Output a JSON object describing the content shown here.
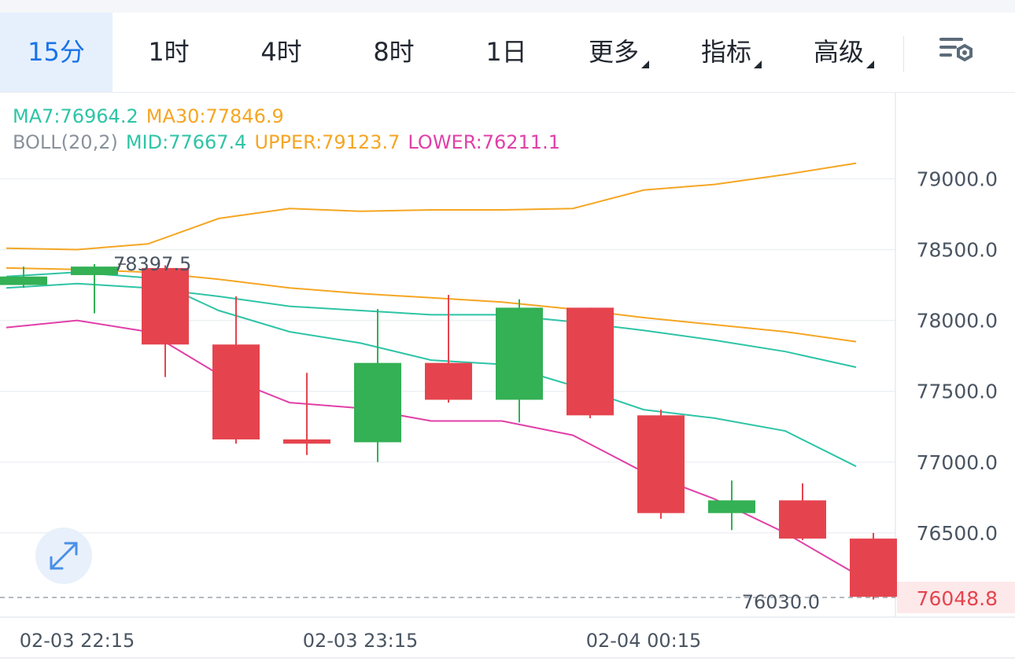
{
  "tabs": [
    {
      "label": "15分",
      "active": true
    },
    {
      "label": "1时",
      "active": false
    },
    {
      "label": "4时",
      "active": false
    },
    {
      "label": "8时",
      "active": false
    },
    {
      "label": "1日",
      "active": false
    },
    {
      "label": "更多",
      "active": false,
      "dropdown": true
    },
    {
      "label": "指标",
      "active": false,
      "dropdown": true
    },
    {
      "label": "高级",
      "active": false,
      "dropdown": true
    }
  ],
  "settings_icon": "chart-settings-icon",
  "expand_icon": "expand-diagonal-icon",
  "legend": {
    "ma7": "MA7:76964.2",
    "ma30": "MA30:77846.9",
    "boll": "BOLL(20,2)",
    "mid": "MID:77667.4",
    "upper": "UPPER:79123.7",
    "lower": "LOWER:76211.1"
  },
  "colors": {
    "up": "#34b055",
    "down": "#e5444e",
    "ma7": "#2ec4a6",
    "ma30": "#f5a623",
    "mid": "#2ec4a6",
    "upper": "#f5a623",
    "lower": "#e040a8",
    "active_tab": "#1a73e8",
    "last_price_label": "#e5444e"
  },
  "chart_data": {
    "type": "candlestick",
    "y_ticks": [
      "79000.0",
      "78500.0",
      "78000.0",
      "77500.0",
      "77000.0",
      "76500.0"
    ],
    "y_tick_values": [
      79000,
      78500,
      78000,
      77500,
      77000,
      76500
    ],
    "x_labels": [
      "02-03 22:15",
      "02-03 23:15",
      "02-04 00:15"
    ],
    "ylim": [
      75900,
      79600
    ],
    "high_annotation": "78397.5",
    "high_value": 78397.5,
    "low_annotation": "76030.0",
    "low_value": 76030.0,
    "last_price_label": "76048.8",
    "last_price": 76048.8,
    "grid": true,
    "candles": [
      {
        "o": 78250,
        "h": 78380,
        "l": 78230,
        "c": 78310
      },
      {
        "o": 78320,
        "h": 78397.5,
        "l": 78050,
        "c": 78380
      },
      {
        "o": 78370,
        "h": 78390,
        "l": 77600,
        "c": 77830
      },
      {
        "o": 77830,
        "h": 78170,
        "l": 77130,
        "c": 77160
      },
      {
        "o": 77160,
        "h": 77630,
        "l": 77050,
        "c": 77130
      },
      {
        "o": 77140,
        "h": 78080,
        "l": 77000,
        "c": 77700
      },
      {
        "o": 77700,
        "h": 78180,
        "l": 77420,
        "c": 77440
      },
      {
        "o": 77440,
        "h": 78150,
        "l": 77280,
        "c": 78090
      },
      {
        "o": 78090,
        "h": 78080,
        "l": 77310,
        "c": 77330
      },
      {
        "o": 77330,
        "h": 77370,
        "l": 76600,
        "c": 76640
      },
      {
        "o": 76640,
        "h": 76870,
        "l": 76520,
        "c": 76730
      },
      {
        "o": 76730,
        "h": 76850,
        "l": 76450,
        "c": 76460
      },
      {
        "o": 76460,
        "h": 76500,
        "l": 76030,
        "c": 76048.8
      }
    ],
    "series": [
      {
        "name": "UPPER",
        "values": [
          78510,
          78500,
          78540,
          78720,
          78790,
          78770,
          78780,
          78780,
          78790,
          78920,
          78960,
          79030,
          79110
        ]
      },
      {
        "name": "MA30",
        "values": [
          78370,
          78360,
          78340,
          78290,
          78230,
          78190,
          78160,
          78130,
          78080,
          78020,
          77970,
          77920,
          77850
        ]
      },
      {
        "name": "MA7",
        "values": [
          78310,
          78340,
          78300,
          78070,
          77920,
          77840,
          77720,
          77690,
          77540,
          77370,
          77310,
          77220,
          76970
        ]
      },
      {
        "name": "MID",
        "values": [
          78230,
          78260,
          78230,
          78170,
          78100,
          78070,
          78040,
          78040,
          77990,
          77930,
          77860,
          77780,
          77670
        ]
      },
      {
        "name": "LOWER",
        "values": [
          77950,
          78000,
          77920,
          77620,
          77420,
          77380,
          77290,
          77290,
          77190,
          76930,
          76740,
          76500,
          76210
        ]
      }
    ]
  }
}
